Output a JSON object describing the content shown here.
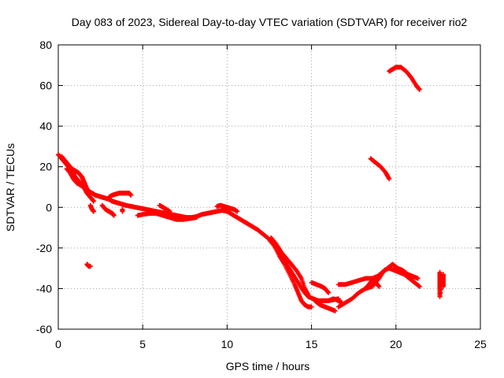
{
  "chart_data": {
    "type": "scatter",
    "title": "Day 083 of 2023, Sidereal Day-to-day VTEC variation (SDTVAR) for receiver rio2",
    "xlabel": "GPS time / hours",
    "ylabel": "SDTVAR / TECUs",
    "xlim": [
      0,
      25
    ],
    "ylim": [
      -60,
      80
    ],
    "xticks": [
      0,
      5,
      10,
      15,
      20,
      25
    ],
    "yticks": [
      -60,
      -40,
      -20,
      0,
      20,
      40,
      60,
      80
    ],
    "grid": true,
    "marker": "+",
    "color": "#ff0000",
    "series": [
      {
        "name": "main-track",
        "points": [
          [
            0.0,
            26
          ],
          [
            0.2,
            24
          ],
          [
            0.4,
            22
          ],
          [
            0.6,
            20
          ],
          [
            0.8,
            18
          ],
          [
            1.0,
            15
          ],
          [
            1.2,
            13
          ],
          [
            1.4,
            11
          ],
          [
            1.6,
            9
          ],
          [
            1.8,
            8
          ],
          [
            2.0,
            7
          ],
          [
            2.2,
            6
          ],
          [
            2.4,
            5.5
          ],
          [
            2.6,
            5
          ],
          [
            2.8,
            4.5
          ],
          [
            3.0,
            4
          ],
          [
            3.2,
            3
          ],
          [
            3.4,
            2.5
          ],
          [
            3.6,
            2
          ],
          [
            3.8,
            1.5
          ],
          [
            4.0,
            1
          ],
          [
            4.3,
            0.5
          ],
          [
            4.6,
            0
          ],
          [
            4.9,
            -0.5
          ],
          [
            5.2,
            -1
          ],
          [
            5.5,
            -1.5
          ],
          [
            5.8,
            -2
          ],
          [
            6.1,
            -2.5
          ],
          [
            6.4,
            -3
          ],
          [
            6.7,
            -3.5
          ],
          [
            7.0,
            -4
          ],
          [
            7.3,
            -4.5
          ],
          [
            7.6,
            -5
          ],
          [
            7.9,
            -5
          ],
          [
            8.2,
            -4.5
          ],
          [
            8.5,
            -3.5
          ],
          [
            8.8,
            -3
          ],
          [
            9.1,
            -2.5
          ],
          [
            9.4,
            -2
          ],
          [
            9.7,
            -1.5
          ],
          [
            10.0,
            -2
          ],
          [
            10.3,
            -3.5
          ],
          [
            10.6,
            -5
          ],
          [
            10.9,
            -6.5
          ],
          [
            11.2,
            -8
          ],
          [
            11.5,
            -9.5
          ],
          [
            11.8,
            -11
          ],
          [
            12.1,
            -13
          ],
          [
            12.4,
            -15
          ],
          [
            12.7,
            -18
          ],
          [
            13.0,
            -21
          ],
          [
            13.3,
            -25
          ],
          [
            13.6,
            -29
          ],
          [
            13.9,
            -33
          ],
          [
            14.2,
            -37
          ],
          [
            14.5,
            -41
          ],
          [
            14.8,
            -44
          ],
          [
            15.1,
            -45
          ],
          [
            15.4,
            -46
          ],
          [
            15.7,
            -46
          ],
          [
            16.0,
            -46
          ],
          [
            16.3,
            -45.5
          ],
          [
            16.6,
            -45
          ]
        ]
      },
      {
        "name": "upper-branch-early",
        "points": [
          [
            0.2,
            25
          ],
          [
            0.4,
            23
          ],
          [
            0.6,
            21
          ],
          [
            0.8,
            19
          ],
          [
            1.0,
            18
          ],
          [
            1.2,
            17
          ],
          [
            1.4,
            15
          ],
          [
            1.5,
            13
          ],
          [
            1.6,
            11
          ],
          [
            1.7,
            9
          ],
          [
            1.8,
            8
          ]
        ]
      },
      {
        "name": "lower-branch-early",
        "points": [
          [
            0.5,
            19
          ],
          [
            0.7,
            17
          ],
          [
            0.9,
            14
          ],
          [
            1.1,
            12
          ],
          [
            1.3,
            11
          ],
          [
            1.5,
            10
          ],
          [
            1.7,
            7
          ],
          [
            1.9,
            5
          ],
          [
            2.1,
            3
          ]
        ]
      },
      {
        "name": "dip-2h",
        "points": [
          [
            1.9,
            1
          ],
          [
            2.0,
            -1
          ],
          [
            2.1,
            -2
          ]
        ]
      },
      {
        "name": "dip-3h",
        "points": [
          [
            2.6,
            1
          ],
          [
            2.8,
            -1
          ],
          [
            3.0,
            -2
          ],
          [
            3.2,
            -3
          ],
          [
            3.3,
            -4
          ]
        ]
      },
      {
        "name": "hump-3to4h",
        "points": [
          [
            3.0,
            5
          ],
          [
            3.2,
            6
          ],
          [
            3.4,
            6.5
          ],
          [
            3.6,
            7
          ],
          [
            3.8,
            7
          ],
          [
            4.0,
            7
          ],
          [
            4.2,
            7
          ],
          [
            4.3,
            6
          ]
        ]
      },
      {
        "name": "isolated-4h",
        "points": [
          [
            3.8,
            -1
          ],
          [
            3.8,
            -2
          ]
        ]
      },
      {
        "name": "lower-band-5to8h",
        "points": [
          [
            4.7,
            -4
          ],
          [
            5.0,
            -3.5
          ],
          [
            5.4,
            -3
          ],
          [
            5.8,
            -3
          ],
          [
            6.2,
            -4
          ],
          [
            6.6,
            -5
          ],
          [
            7.0,
            -6
          ],
          [
            7.4,
            -6
          ],
          [
            7.8,
            -5.5
          ],
          [
            8.2,
            -5
          ]
        ]
      },
      {
        "name": "spike-6h",
        "points": [
          [
            6.0,
            1
          ],
          [
            6.2,
            0
          ],
          [
            6.4,
            -1
          ],
          [
            6.6,
            -2
          ]
        ]
      },
      {
        "name": "rise-10h",
        "points": [
          [
            9.4,
            0.5
          ],
          [
            9.6,
            1
          ],
          [
            9.8,
            0.5
          ],
          [
            10.0,
            0
          ],
          [
            10.2,
            -0.5
          ],
          [
            10.4,
            -1
          ],
          [
            10.6,
            -2
          ]
        ]
      },
      {
        "name": "steep-upper-13to15h",
        "points": [
          [
            12.6,
            -15
          ],
          [
            12.9,
            -18
          ],
          [
            13.2,
            -22
          ],
          [
            13.5,
            -25
          ],
          [
            13.8,
            -28
          ],
          [
            14.1,
            -31
          ],
          [
            14.4,
            -35
          ],
          [
            14.6,
            -40
          ],
          [
            14.8,
            -43
          ]
        ]
      },
      {
        "name": "steep-lower-13to15h",
        "points": [
          [
            12.8,
            -19
          ],
          [
            13.1,
            -24
          ],
          [
            13.4,
            -28
          ],
          [
            13.7,
            -33
          ],
          [
            14.0,
            -38
          ],
          [
            14.2,
            -42
          ],
          [
            14.4,
            -46
          ],
          [
            14.6,
            -48
          ],
          [
            14.8,
            -49
          ],
          [
            15.0,
            -49
          ]
        ]
      },
      {
        "name": "lower-tail-15to16h",
        "points": [
          [
            15.2,
            -46
          ],
          [
            15.5,
            -48
          ],
          [
            15.8,
            -49
          ],
          [
            16.1,
            -50
          ],
          [
            16.4,
            -51
          ]
        ]
      },
      {
        "name": "hump-15h",
        "points": [
          [
            15.0,
            -37
          ],
          [
            15.3,
            -38
          ],
          [
            15.6,
            -39
          ],
          [
            15.8,
            -40
          ],
          [
            16.0,
            -42
          ]
        ]
      },
      {
        "name": "cluster-16to17h",
        "points": [
          [
            16.0,
            -46
          ],
          [
            16.3,
            -45
          ],
          [
            16.6,
            -46
          ],
          [
            16.8,
            -47
          ]
        ]
      },
      {
        "name": "rise-17to20h",
        "points": [
          [
            16.6,
            -49
          ],
          [
            17.0,
            -47
          ],
          [
            17.4,
            -45
          ],
          [
            17.8,
            -42
          ],
          [
            18.2,
            -40
          ],
          [
            18.6,
            -39
          ],
          [
            19.0,
            -35
          ],
          [
            19.3,
            -31
          ],
          [
            19.6,
            -30
          ],
          [
            19.9,
            -31
          ],
          [
            20.2,
            -32
          ],
          [
            20.5,
            -33
          ],
          [
            20.8,
            -35
          ],
          [
            21.1,
            -37
          ],
          [
            21.4,
            -39
          ]
        ]
      },
      {
        "name": "upper-17to21h",
        "points": [
          [
            16.6,
            -38
          ],
          [
            17.0,
            -38
          ],
          [
            17.4,
            -37
          ],
          [
            17.8,
            -36
          ],
          [
            18.2,
            -35
          ],
          [
            18.6,
            -35
          ],
          [
            18.9,
            -34
          ],
          [
            19.2,
            -32
          ],
          [
            19.5,
            -30
          ],
          [
            19.8,
            -28
          ],
          [
            20.1,
            -30
          ],
          [
            20.4,
            -31
          ],
          [
            20.7,
            -33
          ],
          [
            21.0,
            -34
          ],
          [
            21.3,
            -35
          ]
        ]
      },
      {
        "name": "hump-18h",
        "points": [
          [
            18.2,
            -40
          ],
          [
            18.4,
            -38
          ],
          [
            18.6,
            -36
          ],
          [
            18.8,
            -37
          ],
          [
            19.0,
            -39
          ]
        ]
      },
      {
        "name": "arc-19h",
        "points": [
          [
            18.5,
            24
          ],
          [
            18.8,
            22
          ],
          [
            19.1,
            20
          ],
          [
            19.4,
            17
          ],
          [
            19.6,
            14
          ]
        ]
      },
      {
        "name": "arc-20to21h",
        "points": [
          [
            19.6,
            67
          ],
          [
            19.8,
            68
          ],
          [
            20.0,
            69
          ],
          [
            20.3,
            69
          ],
          [
            20.6,
            67
          ],
          [
            20.9,
            64
          ],
          [
            21.2,
            60
          ],
          [
            21.4,
            58
          ]
        ]
      },
      {
        "name": "column-22h",
        "points": [
          [
            22.6,
            -32
          ],
          [
            22.6,
            -34
          ],
          [
            22.6,
            -36
          ],
          [
            22.6,
            -38
          ],
          [
            22.6,
            -40
          ],
          [
            22.6,
            -44
          ],
          [
            22.8,
            -33
          ],
          [
            22.8,
            -35
          ],
          [
            22.8,
            -37
          ],
          [
            22.8,
            -39
          ]
        ]
      },
      {
        "name": "isolated-2h",
        "points": [
          [
            1.7,
            -28
          ],
          [
            1.8,
            -29
          ],
          [
            1.9,
            -29
          ]
        ]
      }
    ]
  }
}
